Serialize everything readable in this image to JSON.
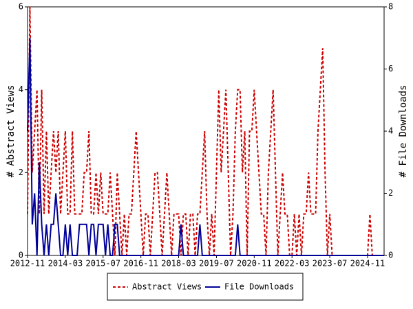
{
  "chart_data": {
    "type": "line",
    "x": [
      "2012-11",
      "2012-12",
      "2013-01",
      "2013-02",
      "2013-03",
      "2013-04",
      "2013-05",
      "2013-06",
      "2013-07",
      "2013-08",
      "2013-09",
      "2013-10",
      "2013-11",
      "2013-12",
      "2014-01",
      "2014-02",
      "2014-03",
      "2014-04",
      "2014-05",
      "2014-06",
      "2014-07",
      "2014-08",
      "2014-09",
      "2014-10",
      "2014-11",
      "2014-12",
      "2015-01",
      "2015-02",
      "2015-03",
      "2015-04",
      "2015-05",
      "2015-06",
      "2015-07",
      "2015-08",
      "2015-09",
      "2015-10",
      "2015-11",
      "2015-12",
      "2016-01",
      "2016-02",
      "2016-03",
      "2016-04",
      "2016-05",
      "2016-06",
      "2016-07",
      "2016-08",
      "2016-09",
      "2016-10",
      "2016-11",
      "2016-12",
      "2017-01",
      "2017-02",
      "2017-03",
      "2017-04",
      "2017-05",
      "2017-06",
      "2017-07",
      "2017-08",
      "2017-09",
      "2017-10",
      "2017-11",
      "2017-12",
      "2018-01",
      "2018-02",
      "2018-03",
      "2018-04",
      "2018-05",
      "2018-06",
      "2018-07",
      "2018-08",
      "2018-09",
      "2018-10",
      "2018-11",
      "2018-12",
      "2019-01",
      "2019-02",
      "2019-03",
      "2019-04",
      "2019-05",
      "2019-06",
      "2019-07",
      "2019-08",
      "2019-09",
      "2019-10",
      "2019-11",
      "2019-12",
      "2020-01",
      "2020-02",
      "2020-03",
      "2020-04",
      "2020-05",
      "2020-06",
      "2020-07",
      "2020-08",
      "2020-09",
      "2020-10",
      "2020-11",
      "2020-12",
      "2021-01",
      "2021-02",
      "2021-03",
      "2021-04",
      "2021-05",
      "2021-06",
      "2021-07",
      "2021-08",
      "2021-09",
      "2021-10",
      "2021-11",
      "2021-12",
      "2022-01",
      "2022-02",
      "2022-03",
      "2022-04",
      "2022-05",
      "2022-06",
      "2022-07",
      "2022-08",
      "2022-09",
      "2022-10",
      "2022-11",
      "2022-12",
      "2023-01",
      "2023-02",
      "2023-03",
      "2023-04",
      "2023-05",
      "2023-06",
      "2023-07",
      "2023-08",
      "2023-09",
      "2023-10",
      "2023-11",
      "2023-12",
      "2024-01",
      "2024-02",
      "2024-03",
      "2024-04",
      "2024-05",
      "2024-06",
      "2024-07",
      "2024-08",
      "2024-09",
      "2024-10",
      "2024-11",
      "2024-12",
      "2025-01",
      "2025-02",
      "2025-03",
      "2025-04",
      "2025-05",
      "2025-06"
    ],
    "xlim": [
      "2012-11",
      "2025-06"
    ],
    "xticks": [
      "2012-11",
      "2014-03",
      "2015-07",
      "2016-11",
      "2018-03",
      "2019-07",
      "2020-11",
      "2022-03",
      "2023-07",
      "2024-11"
    ],
    "ylabel": "# Abstract Views",
    "ylim": [
      0,
      6
    ],
    "yticks": [
      0,
      2,
      4,
      6
    ],
    "y2label": "# File Downloads",
    "y2lim": [
      0,
      8
    ],
    "y2ticks": [
      0,
      2,
      4,
      6,
      8
    ],
    "series": [
      {
        "name": "Abstract Views",
        "color": "#cc0000",
        "dash": true,
        "values": [
          1,
          6,
          2,
          3,
          4,
          1,
          4,
          1,
          3,
          1,
          2,
          3,
          2,
          3,
          1,
          2,
          3,
          1,
          1,
          3,
          1,
          1,
          1,
          1,
          2,
          2,
          3,
          1,
          1,
          2,
          1,
          2,
          1,
          1,
          1,
          2,
          1,
          0,
          2,
          1,
          0,
          1,
          0,
          1,
          1,
          2,
          3,
          2,
          1,
          0,
          1,
          1,
          0,
          1,
          2,
          2,
          1,
          0,
          1,
          2,
          1,
          0,
          1,
          1,
          1,
          0,
          1,
          1,
          0,
          1,
          1,
          0,
          1,
          1,
          2,
          3,
          1,
          0,
          1,
          0,
          2,
          4,
          2,
          3,
          4,
          2,
          0,
          1,
          3,
          4,
          4,
          2,
          3,
          0,
          3,
          3,
          4,
          3,
          2,
          1,
          1,
          0,
          2,
          3,
          4,
          2,
          0,
          1,
          2,
          1,
          1,
          0,
          0,
          1,
          0,
          1,
          0,
          1,
          1,
          2,
          1,
          1,
          1,
          3,
          4,
          5,
          2,
          0,
          1,
          0,
          0,
          0,
          0,
          0,
          0,
          0,
          0,
          0,
          0,
          0,
          0,
          0,
          0,
          0,
          0,
          1,
          0,
          0,
          0,
          0,
          0,
          0
        ]
      },
      {
        "name": "File Downloads",
        "color": "#000099",
        "dash": false,
        "axis": "y2",
        "values": [
          4,
          7,
          1,
          2,
          0,
          3,
          1,
          0,
          1,
          0,
          1,
          1,
          2,
          1,
          0,
          0,
          1,
          0,
          1,
          0,
          0,
          0,
          1,
          1,
          1,
          1,
          0,
          1,
          1,
          0,
          1,
          1,
          1,
          0,
          1,
          0,
          0,
          1,
          1,
          0,
          0,
          0,
          0,
          0,
          0,
          0,
          0,
          0,
          0,
          0,
          0,
          0,
          0,
          0,
          0,
          0,
          0,
          0,
          0,
          0,
          0,
          0,
          0,
          0,
          0,
          1,
          0,
          0,
          0,
          0,
          0,
          0,
          0,
          1,
          0,
          0,
          0,
          0,
          0,
          0,
          0,
          0,
          0,
          0,
          0,
          0,
          0,
          0,
          0,
          1,
          0,
          0,
          0,
          0,
          0,
          0,
          0,
          0,
          0,
          0,
          0,
          0,
          0,
          0,
          0,
          0,
          0,
          0,
          0,
          0,
          0,
          0,
          0,
          0,
          0,
          0,
          0,
          0,
          0,
          0,
          0,
          0,
          0,
          0,
          0,
          0,
          0,
          0,
          0,
          0,
          0,
          0,
          0,
          0,
          0,
          0,
          0,
          0,
          0,
          0,
          0,
          0,
          0,
          0,
          0,
          0,
          0,
          0,
          0,
          0,
          0,
          0
        ]
      }
    ],
    "legend": "bottom"
  }
}
